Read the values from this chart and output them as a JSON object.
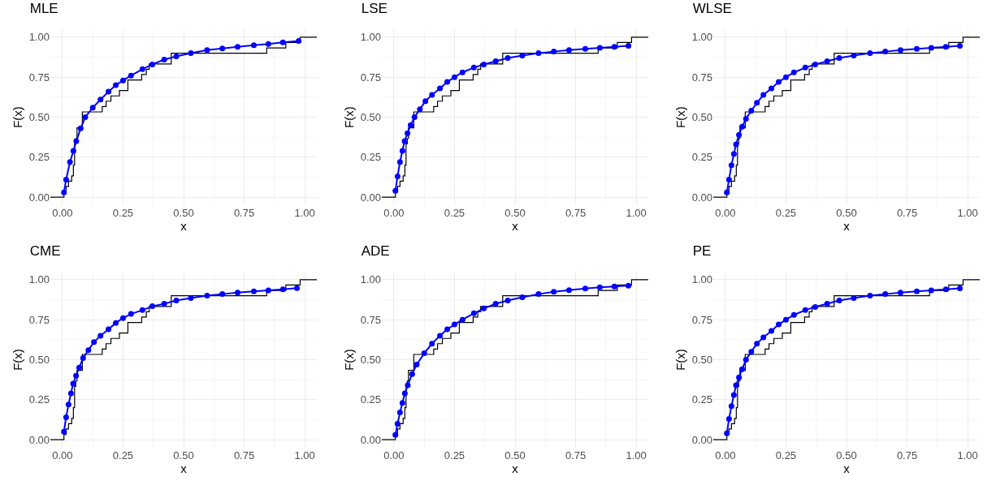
{
  "chart_data": [
    {
      "type": "line",
      "title": "MLE",
      "xlabel": "x",
      "ylabel": "F(x)",
      "xlim": [
        -0.05,
        1.05
      ],
      "ylim": [
        -0.05,
        1.05
      ],
      "xticks": [
        {
          "value": 0,
          "label": "0.00"
        },
        {
          "value": 0.25,
          "label": "0.25"
        },
        {
          "value": 0.5,
          "label": "0.50"
        },
        {
          "value": 0.75,
          "label": "0.75"
        },
        {
          "value": 1,
          "label": "1.00"
        }
      ],
      "yticks": [
        {
          "value": 0,
          "label": "0.00"
        },
        {
          "value": 0.25,
          "label": "0.25"
        },
        {
          "value": 0.5,
          "label": "0.50"
        },
        {
          "value": 0.75,
          "label": "0.75"
        },
        {
          "value": 1,
          "label": "1.00"
        }
      ],
      "grid": true,
      "series": [
        {
          "type": "step",
          "color": "#000000",
          "x": [
            -0.05,
            0.006,
            0.015,
            0.025,
            0.038,
            0.045,
            0.05,
            0.055,
            0.06,
            0.082,
            0.164,
            0.18,
            0.2,
            0.235,
            0.27,
            0.327,
            0.346,
            0.358,
            0.449,
            0.843,
            0.922,
            0.981,
            1.05
          ],
          "values": [
            0,
            0.033,
            0.067,
            0.1,
            0.133,
            0.2,
            0.333,
            0.367,
            0.433,
            0.533,
            0.567,
            0.6,
            0.633,
            0.667,
            0.733,
            0.767,
            0.8,
            0.833,
            0.9,
            0.933,
            0.967,
            1,
            1
          ]
        },
        {
          "color": "#0000ff",
          "marker": "circle",
          "x": [
            0.006,
            0.015,
            0.031,
            0.045,
            0.057,
            0.075,
            0.094,
            0.125,
            0.157,
            0.19,
            0.22,
            0.25,
            0.283,
            0.33,
            0.371,
            0.42,
            0.47,
            0.53,
            0.597,
            0.66,
            0.723,
            0.79,
            0.85,
            0.91,
            0.975
          ],
          "values": [
            0.03,
            0.11,
            0.22,
            0.29,
            0.35,
            0.43,
            0.5,
            0.56,
            0.61,
            0.66,
            0.7,
            0.73,
            0.76,
            0.8,
            0.83,
            0.86,
            0.88,
            0.9,
            0.92,
            0.93,
            0.94,
            0.95,
            0.958,
            0.967,
            0.976
          ]
        }
      ]
    },
    {
      "type": "line",
      "title": "LSE",
      "xlabel": "x",
      "ylabel": "F(x)",
      "xlim": [
        -0.05,
        1.05
      ],
      "ylim": [
        -0.05,
        1.05
      ],
      "xticks": [
        {
          "value": 0,
          "label": "0.00"
        },
        {
          "value": 0.25,
          "label": "0.25"
        },
        {
          "value": 0.5,
          "label": "0.50"
        },
        {
          "value": 0.75,
          "label": "0.75"
        },
        {
          "value": 1,
          "label": "1.00"
        }
      ],
      "yticks": [
        {
          "value": 0,
          "label": "0.00"
        },
        {
          "value": 0.25,
          "label": "0.25"
        },
        {
          "value": 0.5,
          "label": "0.50"
        },
        {
          "value": 0.75,
          "label": "0.75"
        },
        {
          "value": 1,
          "label": "1.00"
        }
      ],
      "grid": true,
      "series": [
        {
          "type": "step",
          "color": "#000000",
          "x": [
            -0.05,
            0.006,
            0.015,
            0.025,
            0.038,
            0.045,
            0.05,
            0.055,
            0.06,
            0.082,
            0.164,
            0.18,
            0.2,
            0.235,
            0.27,
            0.327,
            0.346,
            0.358,
            0.449,
            0.843,
            0.922,
            0.981,
            1.05
          ],
          "values": [
            0,
            0.033,
            0.067,
            0.1,
            0.133,
            0.2,
            0.333,
            0.367,
            0.433,
            0.533,
            0.567,
            0.6,
            0.633,
            0.667,
            0.733,
            0.767,
            0.8,
            0.833,
            0.9,
            0.933,
            0.967,
            1,
            1
          ]
        },
        {
          "color": "#0000ff",
          "marker": "circle",
          "x": [
            0.006,
            0.015,
            0.025,
            0.035,
            0.044,
            0.056,
            0.069,
            0.085,
            0.107,
            0.13,
            0.157,
            0.19,
            0.22,
            0.25,
            0.283,
            0.33,
            0.371,
            0.42,
            0.47,
            0.53,
            0.597,
            0.66,
            0.723,
            0.79,
            0.85,
            0.91,
            0.968
          ],
          "values": [
            0.04,
            0.13,
            0.22,
            0.29,
            0.35,
            0.4,
            0.45,
            0.5,
            0.55,
            0.6,
            0.64,
            0.68,
            0.72,
            0.75,
            0.78,
            0.81,
            0.83,
            0.85,
            0.87,
            0.885,
            0.9,
            0.91,
            0.92,
            0.927,
            0.934,
            0.94,
            0.946
          ]
        }
      ]
    },
    {
      "type": "line",
      "title": "WLSE",
      "xlabel": "x",
      "ylabel": "F(x)",
      "xlim": [
        -0.05,
        1.05
      ],
      "ylim": [
        -0.05,
        1.05
      ],
      "xticks": [
        {
          "value": 0,
          "label": "0.00"
        },
        {
          "value": 0.25,
          "label": "0.25"
        },
        {
          "value": 0.5,
          "label": "0.50"
        },
        {
          "value": 0.75,
          "label": "0.75"
        },
        {
          "value": 1,
          "label": "1.00"
        }
      ],
      "yticks": [
        {
          "value": 0,
          "label": "0.00"
        },
        {
          "value": 0.25,
          "label": "0.25"
        },
        {
          "value": 0.5,
          "label": "0.50"
        },
        {
          "value": 0.75,
          "label": "0.75"
        },
        {
          "value": 1,
          "label": "1.00"
        }
      ],
      "grid": true,
      "series": [
        {
          "type": "step",
          "color": "#000000",
          "x": [
            -0.05,
            0.006,
            0.015,
            0.025,
            0.038,
            0.045,
            0.05,
            0.055,
            0.06,
            0.082,
            0.164,
            0.18,
            0.2,
            0.235,
            0.27,
            0.327,
            0.346,
            0.358,
            0.449,
            0.843,
            0.922,
            0.981,
            1.05
          ],
          "values": [
            0,
            0.033,
            0.067,
            0.1,
            0.133,
            0.2,
            0.333,
            0.367,
            0.433,
            0.533,
            0.567,
            0.6,
            0.633,
            0.667,
            0.733,
            0.767,
            0.8,
            0.833,
            0.9,
            0.933,
            0.967,
            1,
            1
          ]
        },
        {
          "color": "#0000ff",
          "marker": "circle",
          "x": [
            0.006,
            0.015,
            0.025,
            0.035,
            0.044,
            0.056,
            0.069,
            0.085,
            0.107,
            0.13,
            0.157,
            0.19,
            0.22,
            0.25,
            0.283,
            0.33,
            0.371,
            0.42,
            0.47,
            0.53,
            0.597,
            0.66,
            0.723,
            0.79,
            0.85,
            0.91,
            0.968
          ],
          "values": [
            0.03,
            0.11,
            0.2,
            0.27,
            0.33,
            0.39,
            0.44,
            0.49,
            0.54,
            0.59,
            0.64,
            0.68,
            0.72,
            0.75,
            0.78,
            0.81,
            0.83,
            0.85,
            0.87,
            0.885,
            0.9,
            0.91,
            0.92,
            0.927,
            0.934,
            0.94,
            0.946
          ]
        }
      ]
    },
    {
      "type": "line",
      "title": "CME",
      "xlabel": "x",
      "ylabel": "F(x)",
      "xlim": [
        -0.05,
        1.05
      ],
      "ylim": [
        -0.05,
        1.05
      ],
      "xticks": [
        {
          "value": 0,
          "label": "0.00"
        },
        {
          "value": 0.25,
          "label": "0.25"
        },
        {
          "value": 0.5,
          "label": "0.50"
        },
        {
          "value": 0.75,
          "label": "0.75"
        },
        {
          "value": 1,
          "label": "1.00"
        }
      ],
      "yticks": [
        {
          "value": 0,
          "label": "0.00"
        },
        {
          "value": 0.25,
          "label": "0.25"
        },
        {
          "value": 0.5,
          "label": "0.50"
        },
        {
          "value": 0.75,
          "label": "0.75"
        },
        {
          "value": 1,
          "label": "1.00"
        }
      ],
      "grid": true,
      "series": [
        {
          "type": "step",
          "color": "#000000",
          "x": [
            -0.05,
            0.006,
            0.015,
            0.025,
            0.038,
            0.045,
            0.05,
            0.055,
            0.06,
            0.082,
            0.164,
            0.18,
            0.2,
            0.235,
            0.27,
            0.327,
            0.346,
            0.358,
            0.449,
            0.843,
            0.922,
            0.981,
            1.05
          ],
          "values": [
            0,
            0.033,
            0.067,
            0.1,
            0.133,
            0.2,
            0.333,
            0.367,
            0.433,
            0.533,
            0.567,
            0.6,
            0.633,
            0.667,
            0.733,
            0.767,
            0.8,
            0.833,
            0.9,
            0.933,
            0.967,
            1,
            1
          ]
        },
        {
          "color": "#0000ff",
          "marker": "circle",
          "x": [
            0.006,
            0.015,
            0.025,
            0.035,
            0.044,
            0.056,
            0.069,
            0.085,
            0.107,
            0.13,
            0.157,
            0.19,
            0.22,
            0.25,
            0.283,
            0.33,
            0.371,
            0.42,
            0.47,
            0.53,
            0.597,
            0.66,
            0.723,
            0.79,
            0.85,
            0.91,
            0.968
          ],
          "values": [
            0.05,
            0.14,
            0.22,
            0.29,
            0.35,
            0.4,
            0.45,
            0.51,
            0.56,
            0.61,
            0.65,
            0.69,
            0.73,
            0.76,
            0.786,
            0.81,
            0.834,
            0.85,
            0.87,
            0.885,
            0.9,
            0.91,
            0.92,
            0.927,
            0.934,
            0.94,
            0.947
          ]
        }
      ]
    },
    {
      "type": "line",
      "title": "ADE",
      "xlabel": "x",
      "ylabel": "F(x)",
      "xlim": [
        -0.05,
        1.05
      ],
      "ylim": [
        -0.05,
        1.05
      ],
      "xticks": [
        {
          "value": 0,
          "label": "0.00"
        },
        {
          "value": 0.25,
          "label": "0.25"
        },
        {
          "value": 0.5,
          "label": "0.50"
        },
        {
          "value": 0.75,
          "label": "0.75"
        },
        {
          "value": 1,
          "label": "1.00"
        }
      ],
      "yticks": [
        {
          "value": 0,
          "label": "0.00"
        },
        {
          "value": 0.25,
          "label": "0.25"
        },
        {
          "value": 0.5,
          "label": "0.50"
        },
        {
          "value": 0.75,
          "label": "0.75"
        },
        {
          "value": 1,
          "label": "1.00"
        }
      ],
      "grid": true,
      "series": [
        {
          "type": "step",
          "color": "#000000",
          "x": [
            -0.05,
            0.006,
            0.015,
            0.025,
            0.038,
            0.045,
            0.05,
            0.055,
            0.06,
            0.082,
            0.164,
            0.18,
            0.2,
            0.235,
            0.27,
            0.327,
            0.346,
            0.358,
            0.449,
            0.843,
            0.922,
            0.981,
            1.05
          ],
          "values": [
            0,
            0.033,
            0.067,
            0.1,
            0.133,
            0.2,
            0.333,
            0.367,
            0.433,
            0.533,
            0.567,
            0.6,
            0.633,
            0.667,
            0.733,
            0.767,
            0.8,
            0.833,
            0.9,
            0.933,
            0.967,
            1,
            1
          ]
        },
        {
          "color": "#0000ff",
          "marker": "circle",
          "x": [
            0.006,
            0.015,
            0.025,
            0.035,
            0.045,
            0.057,
            0.075,
            0.094,
            0.125,
            0.157,
            0.19,
            0.22,
            0.25,
            0.283,
            0.33,
            0.371,
            0.42,
            0.47,
            0.53,
            0.597,
            0.66,
            0.723,
            0.79,
            0.85,
            0.91,
            0.968
          ],
          "values": [
            0.03,
            0.1,
            0.17,
            0.23,
            0.29,
            0.34,
            0.41,
            0.47,
            0.54,
            0.6,
            0.65,
            0.69,
            0.72,
            0.75,
            0.79,
            0.82,
            0.85,
            0.87,
            0.89,
            0.91,
            0.925,
            0.935,
            0.945,
            0.952,
            0.958,
            0.963
          ]
        }
      ]
    },
    {
      "type": "line",
      "title": "PE",
      "xlabel": "x",
      "ylabel": "F(x)",
      "xlim": [
        -0.05,
        1.05
      ],
      "ylim": [
        -0.05,
        1.05
      ],
      "xticks": [
        {
          "value": 0,
          "label": "0.00"
        },
        {
          "value": 0.25,
          "label": "0.25"
        },
        {
          "value": 0.5,
          "label": "0.50"
        },
        {
          "value": 0.75,
          "label": "0.75"
        },
        {
          "value": 1,
          "label": "1.00"
        }
      ],
      "yticks": [
        {
          "value": 0,
          "label": "0.00"
        },
        {
          "value": 0.25,
          "label": "0.25"
        },
        {
          "value": 0.5,
          "label": "0.50"
        },
        {
          "value": 0.75,
          "label": "0.75"
        },
        {
          "value": 1,
          "label": "1.00"
        }
      ],
      "grid": true,
      "series": [
        {
          "type": "step",
          "color": "#000000",
          "x": [
            -0.05,
            0.006,
            0.015,
            0.025,
            0.038,
            0.045,
            0.05,
            0.055,
            0.06,
            0.082,
            0.164,
            0.18,
            0.2,
            0.235,
            0.27,
            0.327,
            0.346,
            0.358,
            0.449,
            0.843,
            0.922,
            0.981,
            1.05
          ],
          "values": [
            0,
            0.033,
            0.067,
            0.1,
            0.133,
            0.2,
            0.333,
            0.367,
            0.433,
            0.533,
            0.567,
            0.6,
            0.633,
            0.667,
            0.733,
            0.767,
            0.8,
            0.833,
            0.9,
            0.933,
            0.967,
            1,
            1
          ]
        },
        {
          "color": "#0000ff",
          "marker": "circle",
          "x": [
            0.006,
            0.015,
            0.025,
            0.035,
            0.044,
            0.056,
            0.069,
            0.085,
            0.107,
            0.13,
            0.157,
            0.19,
            0.22,
            0.25,
            0.283,
            0.33,
            0.371,
            0.42,
            0.47,
            0.53,
            0.597,
            0.66,
            0.723,
            0.79,
            0.85,
            0.91,
            0.968
          ],
          "values": [
            0.04,
            0.13,
            0.21,
            0.28,
            0.34,
            0.39,
            0.44,
            0.5,
            0.55,
            0.6,
            0.64,
            0.68,
            0.72,
            0.75,
            0.78,
            0.81,
            0.83,
            0.85,
            0.87,
            0.885,
            0.9,
            0.91,
            0.92,
            0.927,
            0.934,
            0.94,
            0.946
          ]
        }
      ]
    }
  ]
}
